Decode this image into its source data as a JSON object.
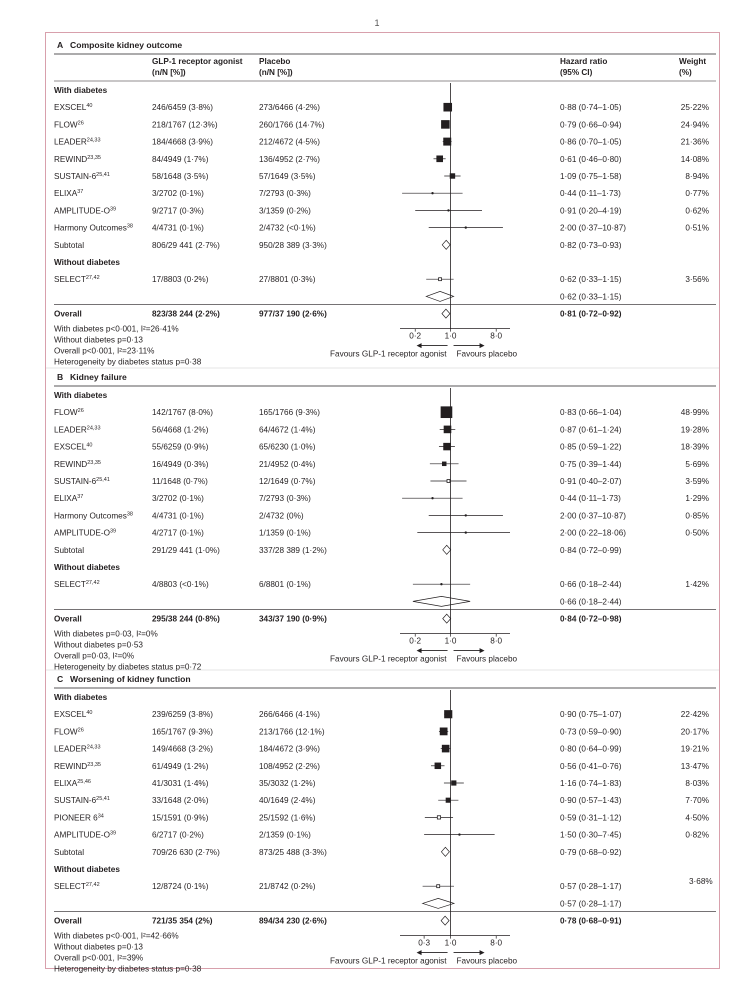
{
  "page_number": "1",
  "columns": {
    "glp1": "GLP-1 receptor agonist",
    "placebo": "Placebo",
    "nn": "(n/N [%])",
    "hr": "Hazard ratio",
    "ci": "(95% CI)",
    "weight": "Weight",
    "pct": "(%)"
  },
  "favours": {
    "left": "Favours GLP-1 receptor agonist",
    "right": "Favours placebo"
  },
  "colors": {
    "frame": "#d8a0ac",
    "ink": "#231f20",
    "marker": "#231f20"
  },
  "chart_data": [
    {
      "type": "forest",
      "letter": "A",
      "title": "Composite kidney outcome",
      "x_scale": "log",
      "xlim": [
        0.1,
        15
      ],
      "ticks": [
        "0·2",
        "1·0",
        "8·0"
      ],
      "tick_values": [
        0.2,
        1.0,
        8.0
      ],
      "groups": [
        {
          "label": "With diabetes",
          "studies": [
            {
              "name": "EXSCEL",
              "sup": "40",
              "glp1": "246/6459 (3·8%)",
              "placebo": "273/6466 (4·2%)",
              "hr": 0.88,
              "lo": 0.74,
              "hi": 1.05,
              "hr_text": "0·88 (0·74–1·05)",
              "weight": 25.22,
              "weight_text": "25·22%"
            },
            {
              "name": "FLOW",
              "sup": "26",
              "glp1": "218/1767 (12·3%)",
              "placebo": "260/1766 (14·7%)",
              "hr": 0.79,
              "lo": 0.66,
              "hi": 0.94,
              "hr_text": "0·79 (0·66–0·94)",
              "weight": 24.94,
              "weight_text": "24·94%"
            },
            {
              "name": "LEADER",
              "sup": "24,33",
              "glp1": "184/4668 (3·9%)",
              "placebo": "212/4672 (4·5%)",
              "hr": 0.86,
              "lo": 0.7,
              "hi": 1.05,
              "hr_text": "0·86 (0·70–1·05)",
              "weight": 21.36,
              "weight_text": "21·36%"
            },
            {
              "name": "REWIND",
              "sup": "23,35",
              "glp1": "84/4949 (1·7%)",
              "placebo": "136/4952 (2·7%)",
              "hr": 0.61,
              "lo": 0.46,
              "hi": 0.8,
              "hr_text": "0·61 (0·46–0·80)",
              "weight": 14.08,
              "weight_text": "14·08%"
            },
            {
              "name": "SUSTAIN-6",
              "sup": "25,41",
              "glp1": "58/1648 (3·5%)",
              "placebo": "57/1649 (3·5%)",
              "hr": 1.09,
              "lo": 0.75,
              "hi": 1.58,
              "hr_text": "1·09 (0·75–1·58)",
              "weight": 8.94,
              "weight_text": "8·94%"
            },
            {
              "name": "ELIXA",
              "sup": "37",
              "glp1": "3/2702 (0·1%)",
              "placebo": "7/2793 (0·3%)",
              "hr": 0.44,
              "lo": 0.11,
              "hi": 1.73,
              "hr_text": "0·44 (0·11–1·73)",
              "weight": 0.77,
              "weight_text": "0·77%"
            },
            {
              "name": "AMPLITUDE-O",
              "sup": "39",
              "glp1": "9/2717 (0·3%)",
              "placebo": "3/1359 (0·2%)",
              "hr": 0.91,
              "lo": 0.2,
              "hi": 4.19,
              "hr_text": "0·91 (0·20–4·19)",
              "weight": 0.62,
              "weight_text": "0·62%"
            },
            {
              "name": "Harmony Outcomes",
              "sup": "38",
              "glp1": "4/4731 (0·1%)",
              "placebo": "2/4732 (<0·1%)",
              "hr": 2.0,
              "lo": 0.37,
              "hi": 10.87,
              "hr_text": "2·00 (0·37–10·87)",
              "weight": 0.51,
              "weight_text": "0·51%"
            }
          ],
          "subtotal": {
            "label": "Subtotal",
            "glp1": "806/29 441 (2·7%)",
            "placebo": "950/28 389 (3·3%)",
            "hr": 0.82,
            "lo": 0.73,
            "hi": 0.93,
            "hr_text": "0·82 (0·73–0·93)"
          }
        },
        {
          "label": "Without diabetes",
          "studies": [
            {
              "name": "SELECT",
              "sup": "27,42",
              "glp1": "17/8803 (0·2%)",
              "placebo": "27/8801 (0·3%)",
              "hr": 0.62,
              "lo": 0.33,
              "hi": 1.15,
              "hr_text": "0·62 (0·33–1·15)",
              "weight": 3.56,
              "weight_text": "3·56%"
            }
          ],
          "subtotal": {
            "label": "",
            "glp1": "",
            "placebo": "",
            "hr": 0.62,
            "lo": 0.33,
            "hi": 1.15,
            "hr_text": "0·62 (0·33–1·15)"
          }
        }
      ],
      "overall": {
        "label": "Overall",
        "glp1": "823/38 244 (2·2%)",
        "placebo": "977/37 190 (2·6%)",
        "hr": 0.81,
        "lo": 0.72,
        "hi": 0.92,
        "hr_text": "0·81 (0·72–0·92)"
      },
      "notes": [
        "With diabetes p<0·001, I²=26·41%",
        "Without diabetes p=0·13",
        "Overall p<0·001, I²=23·11%",
        "Heterogeneity by diabetes status p=0·38"
      ]
    },
    {
      "type": "forest",
      "letter": "B",
      "title": "Kidney failure",
      "x_scale": "log",
      "xlim": [
        0.1,
        15
      ],
      "ticks": [
        "0·2",
        "1·0",
        "8·0"
      ],
      "tick_values": [
        0.2,
        1.0,
        8.0
      ],
      "groups": [
        {
          "label": "With diabetes",
          "studies": [
            {
              "name": "FLOW",
              "sup": "26",
              "glp1": "142/1767 (8·0%)",
              "placebo": "165/1766 (9·3%)",
              "hr": 0.83,
              "lo": 0.66,
              "hi": 1.04,
              "hr_text": "0·83 (0·66–1·04)",
              "weight": 48.99,
              "weight_text": "48·99%"
            },
            {
              "name": "LEADER",
              "sup": "24,33",
              "glp1": "56/4668 (1·2%)",
              "placebo": "64/4672 (1·4%)",
              "hr": 0.87,
              "lo": 0.61,
              "hi": 1.24,
              "hr_text": "0·87 (0·61–1·24)",
              "weight": 19.28,
              "weight_text": "19·28%"
            },
            {
              "name": "EXSCEL",
              "sup": "40",
              "glp1": "55/6259 (0·9%)",
              "placebo": "65/6230 (1·0%)",
              "hr": 0.85,
              "lo": 0.59,
              "hi": 1.22,
              "hr_text": "0·85 (0·59–1·22)",
              "weight": 18.39,
              "weight_text": "18·39%"
            },
            {
              "name": "REWIND",
              "sup": "23,35",
              "glp1": "16/4949 (0·3%)",
              "placebo": "21/4952 (0·4%)",
              "hr": 0.75,
              "lo": 0.39,
              "hi": 1.44,
              "hr_text": "0·75 (0·39–1·44)",
              "weight": 5.69,
              "weight_text": "5·69%"
            },
            {
              "name": "SUSTAIN-6",
              "sup": "25,41",
              "glp1": "11/1648 (0·7%)",
              "placebo": "12/1649 (0·7%)",
              "hr": 0.91,
              "lo": 0.4,
              "hi": 2.07,
              "hr_text": "0·91 (0·40–2·07)",
              "weight": 3.59,
              "weight_text": "3·59%"
            },
            {
              "name": "ELIXA",
              "sup": "37",
              "glp1": "3/2702 (0·1%)",
              "placebo": "7/2793 (0·3%)",
              "hr": 0.44,
              "lo": 0.11,
              "hi": 1.73,
              "hr_text": "0·44 (0·11–1·73)",
              "weight": 1.29,
              "weight_text": "1·29%"
            },
            {
              "name": "Harmony Outcomes",
              "sup": "38",
              "glp1": "4/4731 (0·1%)",
              "placebo": "2/4732 (0%)",
              "hr": 2.0,
              "lo": 0.37,
              "hi": 10.87,
              "hr_text": "2·00 (0·37–10·87)",
              "weight": 0.85,
              "weight_text": "0·85%"
            },
            {
              "name": "AMPLITUDE-O",
              "sup": "39",
              "glp1": "4/2717 (0·1%)",
              "placebo": "1/1359 (0·1%)",
              "hr": 2.0,
              "lo": 0.22,
              "hi": 18.06,
              "hr_text": "2·00 (0·22–18·06)",
              "weight": 0.5,
              "weight_text": "0·50%"
            }
          ],
          "subtotal": {
            "label": "Subtotal",
            "glp1": "291/29 441 (1·0%)",
            "placebo": "337/28 389 (1·2%)",
            "hr": 0.84,
            "lo": 0.72,
            "hi": 0.99,
            "hr_text": "0·84 (0·72–0·99)"
          }
        },
        {
          "label": "Without diabetes",
          "studies": [
            {
              "name": "SELECT",
              "sup": "27,42",
              "glp1": "4/8803 (<0·1%)",
              "placebo": "6/8801 (0·1%)",
              "hr": 0.66,
              "lo": 0.18,
              "hi": 2.44,
              "hr_text": "0·66 (0·18–2·44)",
              "weight": 1.42,
              "weight_text": "1·42%"
            }
          ],
          "subtotal": {
            "label": "",
            "glp1": "",
            "placebo": "",
            "hr": 0.66,
            "lo": 0.18,
            "hi": 2.44,
            "hr_text": "0·66 (0·18–2·44)"
          }
        }
      ],
      "overall": {
        "label": "Overall",
        "glp1": "295/38 244 (0·8%)",
        "placebo": "343/37 190 (0·9%)",
        "hr": 0.84,
        "lo": 0.72,
        "hi": 0.98,
        "hr_text": "0·84 (0·72–0·98)"
      },
      "notes": [
        "With diabetes p=0·03, I²=0%",
        "Without diabetes p=0·53",
        "Overall p=0·03, I²=0%",
        "Heterogeneity by diabetes status p=0·72"
      ]
    },
    {
      "type": "forest",
      "letter": "C",
      "title": "Worsening of kidney function",
      "x_scale": "log",
      "xlim": [
        0.1,
        15
      ],
      "ticks": [
        "0·3",
        "1·0",
        "8·0"
      ],
      "tick_values": [
        0.3,
        1.0,
        8.0
      ],
      "groups": [
        {
          "label": "With diabetes",
          "studies": [
            {
              "name": "EXSCEL",
              "sup": "40",
              "glp1": "239/6259 (3·8%)",
              "placebo": "266/6466 (4·1%)",
              "hr": 0.9,
              "lo": 0.75,
              "hi": 1.07,
              "hr_text": "0·90 (0·75–1·07)",
              "weight": 22.42,
              "weight_text": "22·42%"
            },
            {
              "name": "FLOW",
              "sup": "26",
              "glp1": "165/1767 (9·3%)",
              "placebo": "213/1766 (12·1%)",
              "hr": 0.73,
              "lo": 0.59,
              "hi": 0.9,
              "hr_text": "0·73 (0·59–0·90)",
              "weight": 20.17,
              "weight_text": "20·17%"
            },
            {
              "name": "LEADER",
              "sup": "24,33",
              "glp1": "149/4668 (3·2%)",
              "placebo": "184/4672 (3·9%)",
              "hr": 0.8,
              "lo": 0.64,
              "hi": 0.99,
              "hr_text": "0·80 (0·64–0·99)",
              "weight": 19.21,
              "weight_text": "19·21%"
            },
            {
              "name": "REWIND",
              "sup": "23,35",
              "glp1": "61/4949 (1·2%)",
              "placebo": "108/4952 (2·2%)",
              "hr": 0.56,
              "lo": 0.41,
              "hi": 0.76,
              "hr_text": "0·56 (0·41–0·76)",
              "weight": 13.47,
              "weight_text": "13·47%"
            },
            {
              "name": "ELIXA",
              "sup": "25,46",
              "glp1": "41/3031 (1·4%)",
              "placebo": "35/3032 (1·2%)",
              "hr": 1.16,
              "lo": 0.74,
              "hi": 1.83,
              "hr_text": "1·16 (0·74–1·83)",
              "weight": 8.03,
              "weight_text": "8·03%"
            },
            {
              "name": "SUSTAIN-6",
              "sup": "25,41",
              "glp1": "33/1648 (2·0%)",
              "placebo": "40/1649 (2·4%)",
              "hr": 0.9,
              "lo": 0.57,
              "hi": 1.43,
              "hr_text": "0·90 (0·57–1·43)",
              "weight": 7.7,
              "weight_text": "7·70%"
            },
            {
              "name": "PIONEER 6",
              "sup": "34",
              "glp1": "15/1591 (0·9%)",
              "placebo": "25/1592 (1·6%)",
              "hr": 0.59,
              "lo": 0.31,
              "hi": 1.12,
              "hr_text": "0·59 (0·31–1·12)",
              "weight": 4.5,
              "weight_text": "4·50%"
            },
            {
              "name": "AMPLITUDE-O",
              "sup": "39",
              "glp1": "6/2717 (0·2%)",
              "placebo": "2/1359 (0·1%)",
              "hr": 1.5,
              "lo": 0.3,
              "hi": 7.45,
              "hr_text": "1·50 (0·30–7·45)",
              "weight": 0.82,
              "weight_text": "0·82%"
            }
          ],
          "subtotal": {
            "label": "Subtotal",
            "glp1": "709/26 630 (2·7%)",
            "placebo": "873/25 488 (3·3%)",
            "hr": 0.79,
            "lo": 0.68,
            "hi": 0.92,
            "hr_text": "0·79 (0·68–0·92)"
          }
        },
        {
          "label": "Without diabetes",
          "label_weight": "3·68%",
          "studies": [
            {
              "name": "SELECT",
              "sup": "27,42",
              "glp1": "12/8724 (0·1%)",
              "placebo": "21/8742 (0·2%)",
              "hr": 0.57,
              "lo": 0.28,
              "hi": 1.17,
              "hr_text": "0·57 (0·28–1·17)",
              "weight": 3.68,
              "weight_text": ""
            }
          ],
          "subtotal": {
            "label": "",
            "glp1": "",
            "placebo": "",
            "hr": 0.57,
            "lo": 0.28,
            "hi": 1.17,
            "hr_text": "0·57 (0·28–1·17)"
          }
        }
      ],
      "overall": {
        "label": "Overall",
        "glp1": "721/35 354 (2%)",
        "placebo": "894/34 230 (2·6%)",
        "hr": 0.78,
        "lo": 0.68,
        "hi": 0.91,
        "hr_text": "0·78 (0·68–0·91)"
      },
      "notes": [
        "With diabetes p<0·001, I²=42·66%",
        "Without diabetes p=0·13",
        "Overall p<0·001, I²=39%",
        "Heterogeneity by diabetes status p=0·38"
      ]
    }
  ]
}
